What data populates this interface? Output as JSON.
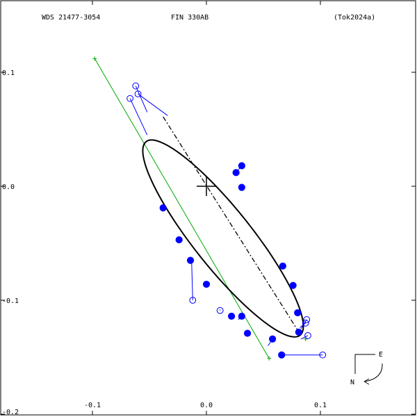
{
  "header": {
    "left": "WDS 21477-3054",
    "center": "FIN 330AB",
    "right": "(Tok2024a)"
  },
  "compass": {
    "east": "E",
    "north": "N"
  },
  "colors": {
    "frame": "#000000",
    "orbit": "#000000",
    "data": "#0000ff",
    "nodes": "#00aa00"
  },
  "chart_data": {
    "type": "scatter",
    "xlim": [
      -0.18,
      0.18
    ],
    "ylim": [
      -0.2,
      0.163
    ],
    "x_ticks": [
      -0.1,
      0.0,
      0.1
    ],
    "x_tick_labels": [
      "-0.1",
      "0.0",
      "0.1"
    ],
    "y_ticks": [
      0.1,
      0.0,
      -0.1,
      -0.2
    ],
    "y_tick_labels": [
      "0.1",
      "0.0",
      "-0.1",
      "-0.2"
    ],
    "grid": false,
    "primary": [
      0.0,
      0.0
    ],
    "ellipse": {
      "center": [
        0.0146,
        -0.0458
      ],
      "semi_major": 0.1085,
      "semi_minor": 0.0255,
      "angle_deg": -51.5
    },
    "periastron_line": [
      [
        -0.038,
        0.061
      ],
      [
        0.083,
        -0.131
      ]
    ],
    "line_of_nodes": [
      [
        -0.098,
        0.112
      ],
      [
        0.055,
        -0.151
      ]
    ],
    "node_markers": [
      [
        -0.098,
        0.112
      ],
      [
        0.087,
        -0.134
      ],
      [
        0.055,
        -0.151
      ]
    ],
    "filled_points": [
      {
        "obs": [
          0.026,
          0.012
        ],
        "fit": [
          0.025,
          0.011
        ]
      },
      {
        "obs": [
          0.031,
          0.018
        ],
        "fit": [
          0.026,
          0.012
        ]
      },
      {
        "obs": [
          0.031,
          -0.001
        ],
        "fit": [
          0.031,
          0.001
        ]
      },
      {
        "obs": [
          -0.038,
          -0.019
        ],
        "fit": [
          -0.039,
          -0.019
        ]
      },
      {
        "obs": [
          -0.024,
          -0.047
        ],
        "fit": [
          -0.025,
          -0.047
        ]
      },
      {
        "obs": [
          -0.014,
          -0.065
        ],
        "fit": [
          -0.013,
          -0.066
        ]
      },
      {
        "obs": [
          0.067,
          -0.07
        ],
        "fit": [
          0.068,
          -0.07
        ]
      },
      {
        "obs": [
          0.076,
          -0.087
        ],
        "fit": [
          0.076,
          -0.087
        ]
      },
      {
        "obs": [
          0.0,
          -0.086
        ],
        "fit": [
          0.0,
          -0.086
        ]
      },
      {
        "obs": [
          0.08,
          -0.111
        ],
        "fit": [
          0.081,
          -0.111
        ]
      },
      {
        "obs": [
          0.022,
          -0.114
        ],
        "fit": [
          0.022,
          -0.114
        ]
      },
      {
        "obs": [
          0.031,
          -0.114
        ],
        "fit": [
          0.028,
          -0.117
        ]
      },
      {
        "obs": [
          0.081,
          -0.128
        ],
        "fit": [
          0.08,
          -0.127
        ]
      },
      {
        "obs": [
          0.036,
          -0.129
        ],
        "fit": [
          0.037,
          -0.129
        ]
      },
      {
        "obs": [
          0.058,
          -0.134
        ],
        "fit": [
          0.054,
          -0.14
        ]
      },
      {
        "obs": [
          0.066,
          -0.148
        ],
        "fit": [
          0.066,
          -0.148
        ]
      }
    ],
    "open_points": [
      {
        "obs": [
          -0.062,
          0.088
        ],
        "fit": [
          -0.052,
          0.065
        ]
      },
      {
        "obs": [
          -0.06,
          0.081
        ],
        "fit": [
          -0.034,
          0.062
        ]
      },
      {
        "obs": [
          -0.067,
          0.077
        ],
        "fit": [
          -0.052,
          0.045
        ]
      },
      {
        "obs": [
          -0.012,
          -0.1
        ],
        "fit": [
          -0.013,
          -0.065
        ]
      },
      {
        "obs": [
          0.012,
          -0.109
        ],
        "fit": [
          0.012,
          -0.108
        ]
      },
      {
        "obs": [
          0.088,
          -0.117
        ],
        "fit": [
          0.083,
          -0.125
        ]
      },
      {
        "obs": [
          0.087,
          -0.12
        ],
        "fit": [
          0.082,
          -0.124
        ]
      },
      {
        "obs": [
          0.089,
          -0.131
        ],
        "fit": [
          0.083,
          -0.134
        ]
      },
      {
        "obs": [
          0.102,
          -0.148
        ],
        "fit": [
          0.068,
          -0.148
        ]
      }
    ]
  }
}
